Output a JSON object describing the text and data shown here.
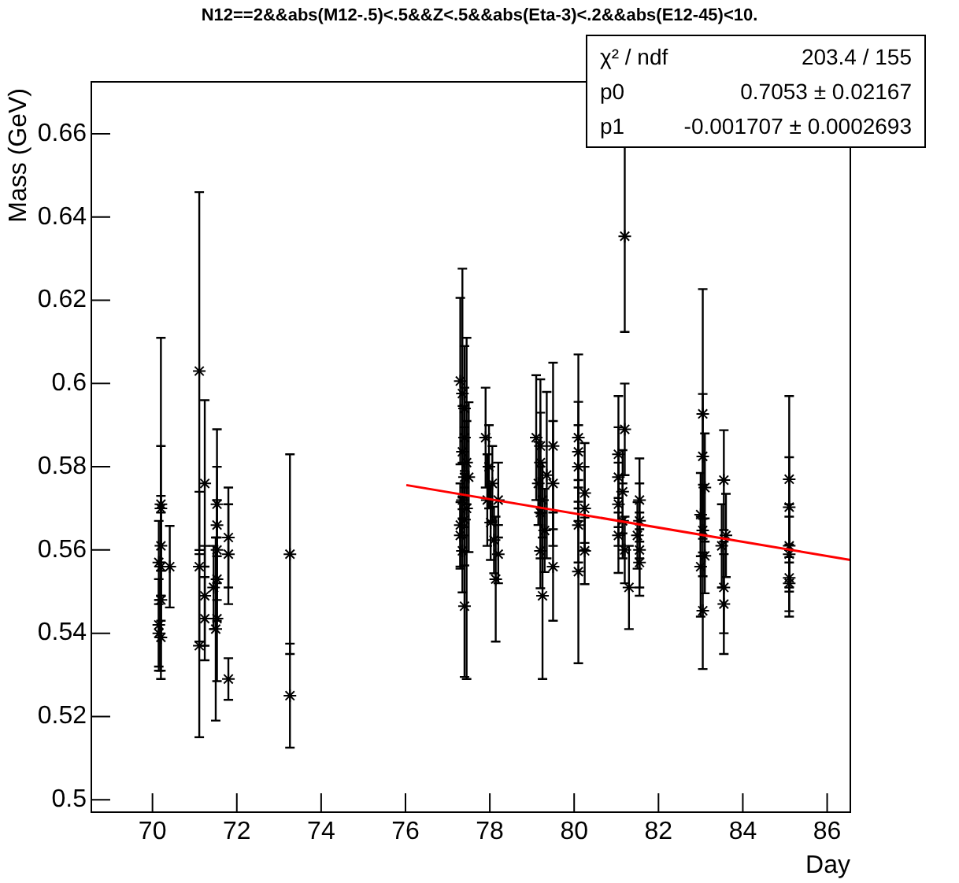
{
  "chart_data": {
    "type": "scatter",
    "title": "N12==2&&abs(M12-.5)<.5&&Z<.5&&abs(Eta-3)<.2&&abs(E12-45)<10.",
    "xlabel": "Day",
    "ylabel": "Mass (GeV)",
    "xlim": [
      68.55,
      86.55
    ],
    "xticks": [
      70,
      72,
      74,
      76,
      78,
      80,
      82,
      84,
      86
    ],
    "ylim": [
      0.497,
      0.6725
    ],
    "yticks": [
      0.5,
      0.52,
      0.54,
      0.56,
      0.58,
      0.6,
      0.62,
      0.64,
      0.66
    ],
    "grid": false,
    "legend": false,
    "marker": "cross",
    "annotations": [
      "χ² / ndf",
      "203.4 / 155",
      "p0",
      "0.7053 ± 0.02167",
      "p1",
      "-0.001707 ± 0.0002693"
    ],
    "series": [
      {
        "color": "#000000",
        "x": [
          70.2,
          70.2,
          70.2,
          70.15,
          70.2,
          70.2,
          70.15,
          70.2,
          70.15,
          70.41,
          71.11,
          71.11,
          71.11,
          71.24,
          71.24,
          71.24,
          71.53,
          71.53,
          71.53,
          71.53,
          71.53,
          71.5,
          71.45,
          71.8,
          71.8,
          71.8,
          73.26,
          73.26,
          77.3,
          77.35,
          77.4,
          77.4,
          77.35,
          77.45,
          77.4,
          77.35,
          77.4,
          77.3,
          77.35,
          77.4,
          77.5,
          77.45,
          77.3,
          77.9,
          77.98,
          78.06,
          77.94,
          78.02,
          78.1,
          78.14,
          78.2,
          78.2,
          79.1,
          79.2,
          79.2,
          79.15,
          79.25,
          79.2,
          79.3,
          79.2,
          79.25,
          79.35,
          79.5,
          79.5,
          79.5,
          80.1,
          80.1,
          80.1,
          80.1,
          80.1,
          80.25,
          80.25,
          80.25,
          81.05,
          81.05,
          81.05,
          81.05,
          81.2,
          81.2,
          81.15,
          81.15,
          81.2,
          81.3,
          81.55,
          81.55,
          81.5,
          81.55,
          81.55,
          83.05,
          83.05,
          83.1,
          83.0,
          83.05,
          83.1,
          83.0,
          83.05,
          83.55,
          83.6,
          83.5,
          83.55,
          83.55,
          85.1,
          85.1,
          85.1,
          85.1,
          85.1,
          85.1
        ],
        "values": [
          0.571,
          0.57,
          0.561,
          0.557,
          0.556,
          0.548,
          0.542,
          0.539,
          0.54,
          0.556,
          0.603,
          0.537,
          0.556,
          0.576,
          0.549,
          0.5435,
          0.571,
          0.566,
          0.56,
          0.553,
          0.5435,
          0.541,
          0.551,
          0.563,
          0.559,
          0.529,
          0.559,
          0.525,
          0.6006,
          0.5976,
          0.594,
          0.587,
          0.5836,
          0.581,
          0.5775,
          0.572,
          0.5673,
          0.5635,
          0.5598,
          0.5465,
          0.5775,
          0.57,
          0.566,
          0.587,
          0.58,
          0.576,
          0.572,
          0.5666,
          0.5624,
          0.553,
          0.572,
          0.559,
          0.587,
          0.585,
          0.581,
          0.576,
          0.572,
          0.569,
          0.5647,
          0.5598,
          0.549,
          0.578,
          0.585,
          0.576,
          0.556,
          0.587,
          0.5836,
          0.58,
          0.566,
          0.5548,
          0.5737,
          0.57,
          0.5598,
          0.583,
          0.5775,
          0.571,
          0.5635,
          0.6354,
          0.589,
          0.574,
          0.567,
          0.56,
          0.551,
          0.572,
          0.567,
          0.5635,
          0.56,
          0.557,
          0.5927,
          0.5825,
          0.575,
          0.5685,
          0.5647,
          0.5586,
          0.556,
          0.5454,
          0.5768,
          0.5635,
          0.561,
          0.551,
          0.547,
          0.577,
          0.5703,
          0.561,
          0.559,
          0.5533,
          0.552
        ],
        "errors": [
          0.04,
          0.015,
          0.012,
          0.01,
          0.013,
          0.009,
          0.011,
          0.01,
          0.008,
          0.0098,
          0.043,
          0.022,
          0.018,
          0.02,
          0.012,
          0.01,
          0.018,
          0.014,
          0.012,
          0.01,
          0.015,
          0.022,
          0.01,
          0.012,
          0.012,
          0.005,
          0.024,
          0.0125,
          0.02,
          0.03,
          0.015,
          0.012,
          0.011,
          0.01,
          0.012,
          0.009,
          0.011,
          0.008,
          0.01,
          0.017,
          0.018,
          0.041,
          0.01,
          0.012,
          0.01,
          0.009,
          0.011,
          0.009,
          0.008,
          0.015,
          0.009,
          0.007,
          0.015,
          0.016,
          0.012,
          0.01,
          0.009,
          0.011,
          0.01,
          0.009,
          0.02,
          0.02,
          0.02,
          0.015,
          0.013,
          0.02,
          0.012,
          0.01,
          0.009,
          0.022,
          0.012,
          0.01,
          0.008,
          0.014,
          0.012,
          0.01,
          0.009,
          0.023,
          0.011,
          0.01,
          0.009,
          0.008,
          0.01,
          0.01,
          0.009,
          0.008,
          0.009,
          0.008,
          0.03,
          0.015,
          0.013,
          0.01,
          0.011,
          0.009,
          0.012,
          0.014,
          0.012,
          0.01,
          0.01,
          0.011,
          0.012,
          0.02,
          0.012,
          0.01,
          0.009,
          0.008,
          0.008
        ]
      },
      {
        "type": "line",
        "marker": "none",
        "color": "#ff0000",
        "x": [
          76.02,
          86.55
        ],
        "values": [
          0.5756,
          0.5576
        ]
      }
    ]
  }
}
